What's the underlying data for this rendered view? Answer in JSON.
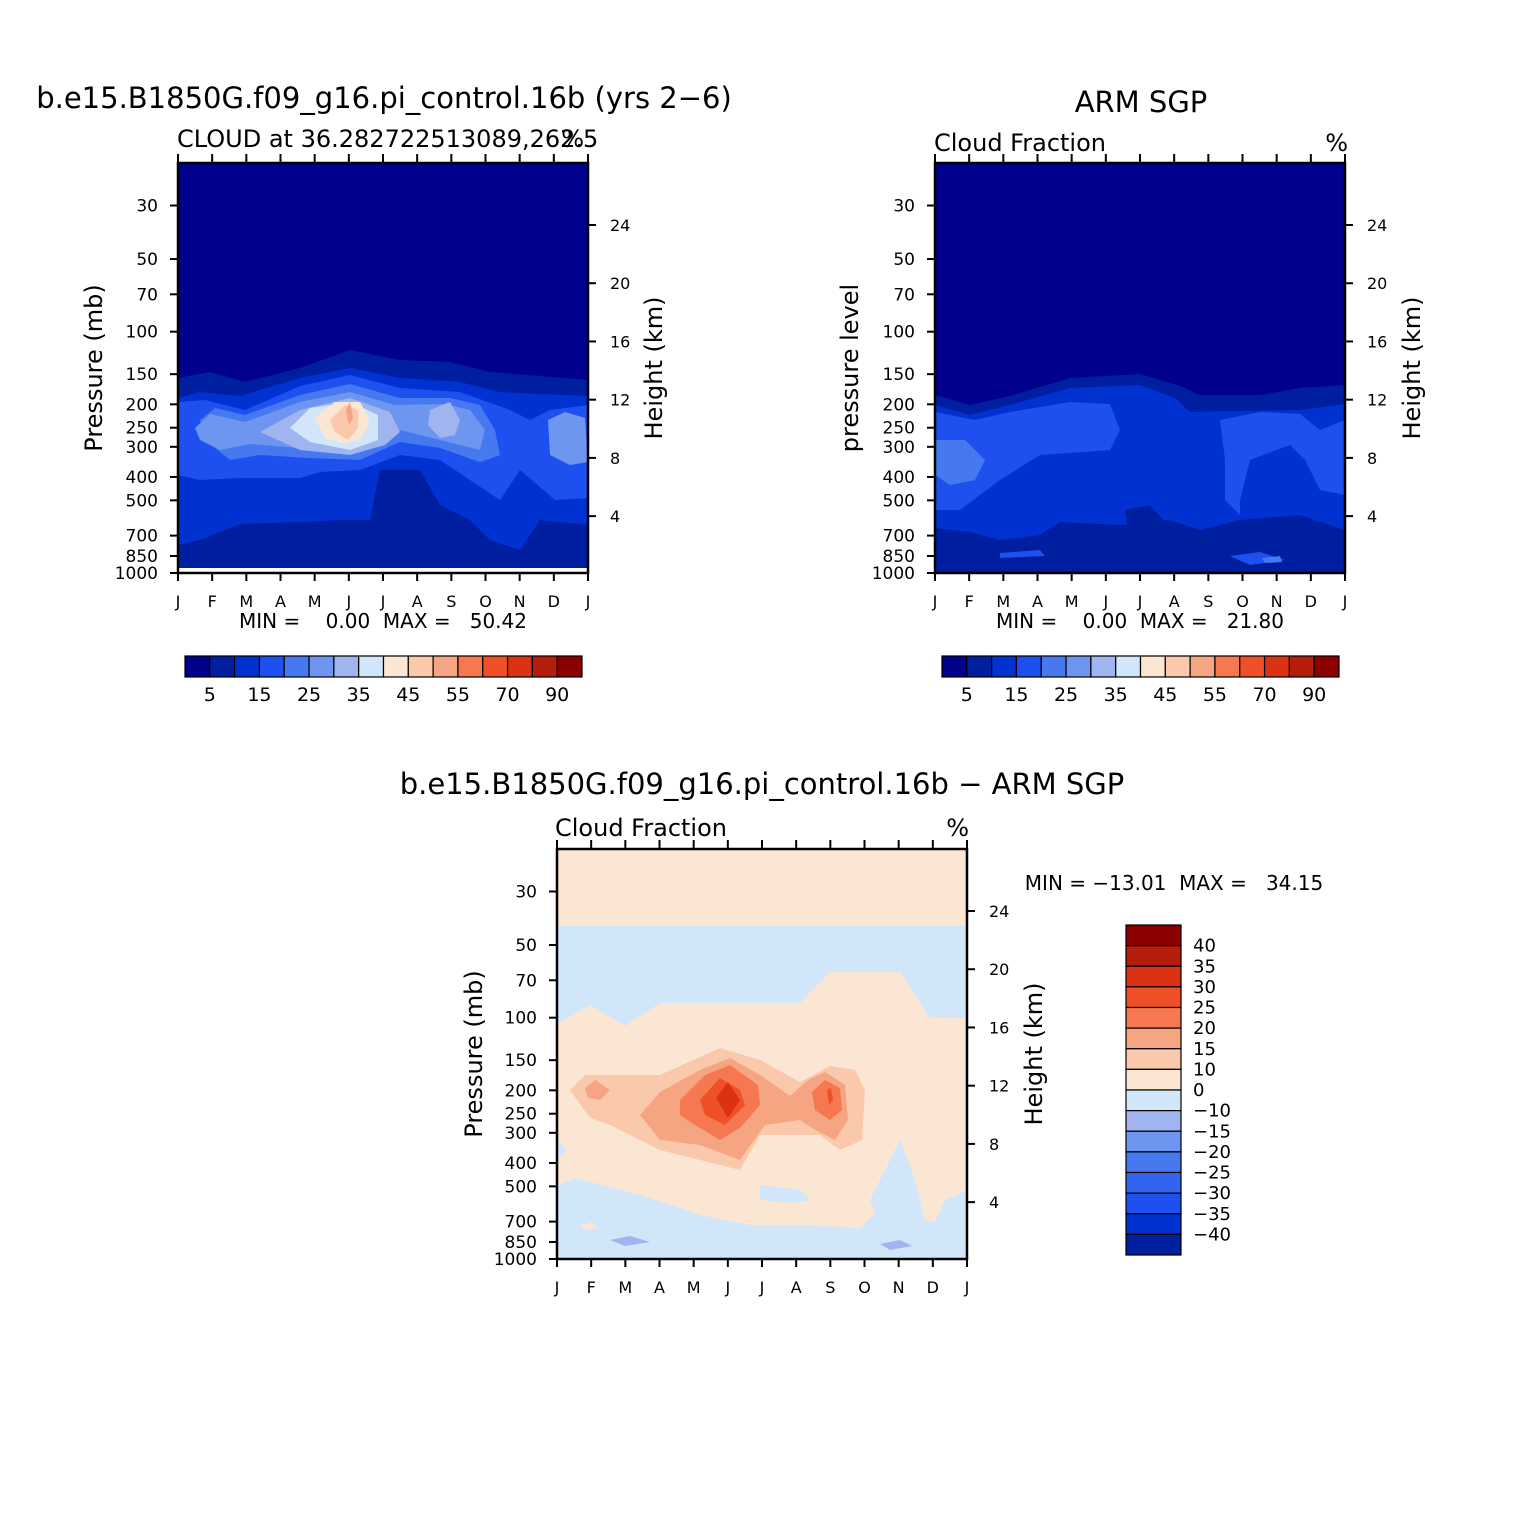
{
  "month_labels": [
    "J",
    "F",
    "M",
    "A",
    "M",
    "J",
    "J",
    "A",
    "S",
    "O",
    "N",
    "D",
    "J"
  ],
  "pressure_ticks": [
    30,
    50,
    70,
    100,
    150,
    200,
    250,
    300,
    400,
    500,
    700,
    850,
    1000
  ],
  "height_ticks": [
    24,
    20,
    16,
    12,
    8,
    4
  ],
  "seq_colors": [
    "#00008c",
    "#001ea0",
    "#0032d2",
    "#1e50f0",
    "#4678f0",
    "#6e96f0",
    "#a0b4f0",
    "#d2e6fa",
    "#fae6d2",
    "#fac8aa",
    "#f5a582",
    "#f57850",
    "#f05028",
    "#dc3214",
    "#b41e0a",
    "#8c0000"
  ],
  "seq_labels": [
    "5",
    "15",
    "25",
    "35",
    "45",
    "55",
    "70",
    "90"
  ],
  "diff_colors": [
    "#001ea0",
    "#0032d2",
    "#1e50f0",
    "#3264f0",
    "#4678f0",
    "#6e96f0",
    "#a0b4f0",
    "#d2e6fa",
    "#fae6d2",
    "#fac8aa",
    "#f5a582",
    "#f57850",
    "#f05028",
    "#dc3214",
    "#b41e0a",
    "#8c0000"
  ],
  "diff_labels": [
    "40",
    "35",
    "30",
    "25",
    "20",
    "15",
    "10",
    "0",
    "−10",
    "−15",
    "−20",
    "−25",
    "−30",
    "−35",
    "−40"
  ],
  "panel_model": {
    "title": "b.e15.B1850G.f09_g16.pi_control.16b (yrs 2−6)",
    "subtitle": "CLOUD at 36.282722513089,262.5",
    "units": "%",
    "ylabel": "Pressure (mb)",
    "y2label": "Height (km)",
    "minmax": "MIN =    0.00  MAX =   50.42"
  },
  "panel_obs": {
    "title": "ARM SGP",
    "subtitle": "Cloud Fraction",
    "units": "%",
    "ylabel": "pressure level",
    "y2label": "Height (km)",
    "minmax": "MIN =    0.00  MAX =   21.80"
  },
  "panel_diff": {
    "title": "b.e15.B1850G.f09_g16.pi_control.16b − ARM SGP",
    "subtitle": "Cloud Fraction",
    "units": "%",
    "ylabel": "Pressure (mb)",
    "y2label": "Height (km)",
    "minmax": "MIN = −13.01  MAX =   34.15"
  },
  "chart_data": [
    {
      "type": "heatmap",
      "title": "b.e15.B1850G.f09_g16.pi_control.16b (yrs 2−6)",
      "subtitle": "CLOUD at 36.282722513089,262.5",
      "xlabel": "",
      "ylabel": "Pressure (mb)",
      "y2label": "Height (km)",
      "x": [
        "J",
        "F",
        "M",
        "A",
        "M",
        "J",
        "J",
        "A",
        "S",
        "O",
        "N",
        "D",
        "J"
      ],
      "y_pressure": [
        30,
        50,
        70,
        100,
        150,
        200,
        250,
        300,
        400,
        500,
        700,
        850,
        1000
      ],
      "units": "%",
      "min": 0.0,
      "max": 50.42,
      "levels": [
        5,
        10,
        15,
        20,
        25,
        30,
        35,
        40,
        45,
        50,
        55,
        60,
        70,
        80,
        90
      ]
    },
    {
      "type": "heatmap",
      "title": "ARM SGP",
      "subtitle": "Cloud Fraction",
      "xlabel": "",
      "ylabel": "pressure level",
      "y2label": "Height (km)",
      "x": [
        "J",
        "F",
        "M",
        "A",
        "M",
        "J",
        "J",
        "A",
        "S",
        "O",
        "N",
        "D",
        "J"
      ],
      "y_pressure": [
        30,
        50,
        70,
        100,
        150,
        200,
        250,
        300,
        400,
        500,
        700,
        850,
        1000
      ],
      "units": "%",
      "min": 0.0,
      "max": 21.8,
      "levels": [
        5,
        10,
        15,
        20,
        25,
        30,
        35,
        40,
        45,
        50,
        55,
        60,
        70,
        80,
        90
      ]
    },
    {
      "type": "heatmap",
      "title": "b.e15.B1850G.f09_g16.pi_control.16b − ARM SGP",
      "subtitle": "Cloud Fraction",
      "xlabel": "",
      "ylabel": "Pressure (mb)",
      "y2label": "Height (km)",
      "x": [
        "J",
        "F",
        "M",
        "A",
        "M",
        "J",
        "J",
        "A",
        "S",
        "O",
        "N",
        "D",
        "J"
      ],
      "y_pressure": [
        30,
        50,
        70,
        100,
        150,
        200,
        250,
        300,
        400,
        500,
        700,
        850,
        1000
      ],
      "units": "%",
      "min": -13.01,
      "max": 34.15,
      "levels": [
        -40,
        -35,
        -30,
        -25,
        -20,
        -15,
        -10,
        0,
        10,
        15,
        20,
        25,
        30,
        35,
        40
      ]
    }
  ]
}
